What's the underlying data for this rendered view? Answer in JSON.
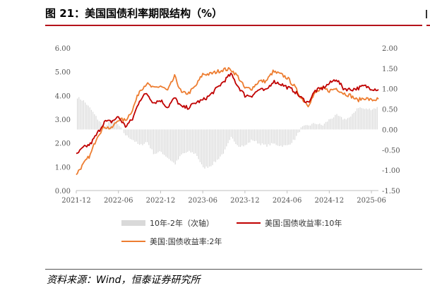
{
  "page": {
    "title": "图 21：美国国债利率期限结构（%）",
    "source": "资料来源：Wind，恒泰证券研究所"
  },
  "chart_data": {
    "type": "line",
    "title": "",
    "xlabel": "",
    "ylabel": "",
    "x_range": [
      "2021-12",
      "2025-07"
    ],
    "x_ticks": [
      "2021-12",
      "2022-06",
      "2022-12",
      "2023-06",
      "2023-12",
      "2024-06",
      "2024-12",
      "2025-06"
    ],
    "y_left": {
      "range": [
        0,
        6
      ],
      "ticks": [
        "0.00",
        "1.00",
        "2.00",
        "3.00",
        "4.00",
        "5.00",
        "6.00"
      ]
    },
    "y_right": {
      "range": [
        -1.5,
        2.0
      ],
      "ticks": [
        "-1.50",
        "-1.00",
        "-0.50",
        "0.00",
        "0.50",
        "1.00",
        "1.50",
        "2.00"
      ]
    },
    "grid": false,
    "legend_position": "bottom",
    "series": [
      {
        "name": "10年-2年（次轴）",
        "kind": "bar",
        "axis": "right",
        "color": "#d9d9d9",
        "x": [
          "2021-12",
          "2022-01",
          "2022-02",
          "2022-03",
          "2022-04",
          "2022-05",
          "2022-06",
          "2022-07",
          "2022-08",
          "2022-09",
          "2022-10",
          "2022-11",
          "2022-12",
          "2023-01",
          "2023-02",
          "2023-03",
          "2023-04",
          "2023-05",
          "2023-06",
          "2023-07",
          "2023-08",
          "2023-09",
          "2023-10",
          "2023-11",
          "2023-12",
          "2024-01",
          "2024-02",
          "2024-03",
          "2024-04",
          "2024-05",
          "2024-06",
          "2024-07",
          "2024-08",
          "2024-09",
          "2024-10",
          "2024-11",
          "2024-12",
          "2025-01",
          "2025-02",
          "2025-03",
          "2025-04",
          "2025-05",
          "2025-06",
          "2025-07"
        ],
        "values": [
          0.8,
          0.7,
          0.5,
          0.25,
          0.05,
          0.25,
          0.1,
          -0.15,
          -0.25,
          -0.4,
          -0.3,
          -0.6,
          -0.55,
          -0.7,
          -0.85,
          -0.6,
          -0.55,
          -0.6,
          -0.95,
          -0.9,
          -0.75,
          -0.55,
          -0.2,
          -0.4,
          -0.4,
          -0.25,
          -0.35,
          -0.4,
          -0.35,
          -0.4,
          -0.4,
          -0.25,
          0.05,
          0.1,
          0.15,
          0.1,
          0.25,
          0.35,
          0.25,
          0.3,
          0.55,
          0.5,
          0.5,
          0.55
        ]
      },
      {
        "name": "美国:国债收益率:10年",
        "kind": "line",
        "axis": "left",
        "color": "#c00000",
        "x": [
          "2021-12",
          "2022-01",
          "2022-02",
          "2022-03",
          "2022-04",
          "2022-05",
          "2022-06",
          "2022-07",
          "2022-08",
          "2022-09",
          "2022-10",
          "2022-11",
          "2022-12",
          "2023-01",
          "2023-02",
          "2023-03",
          "2023-04",
          "2023-05",
          "2023-06",
          "2023-07",
          "2023-08",
          "2023-09",
          "2023-10",
          "2023-11",
          "2023-12",
          "2024-01",
          "2024-02",
          "2024-03",
          "2024-04",
          "2024-05",
          "2024-06",
          "2024-07",
          "2024-08",
          "2024-09",
          "2024-10",
          "2024-11",
          "2024-12",
          "2025-01",
          "2025-02",
          "2025-03",
          "2025-04",
          "2025-05",
          "2025-06",
          "2025-07"
        ],
        "values": [
          1.5,
          1.8,
          1.95,
          2.4,
          2.9,
          2.9,
          3.1,
          2.7,
          3.0,
          3.8,
          4.1,
          3.7,
          3.8,
          3.5,
          3.9,
          3.5,
          3.5,
          3.7,
          3.8,
          4.0,
          4.3,
          4.6,
          4.9,
          4.4,
          4.0,
          4.0,
          4.25,
          4.2,
          4.6,
          4.5,
          4.35,
          4.2,
          3.9,
          3.7,
          4.2,
          4.3,
          4.5,
          4.7,
          4.3,
          4.25,
          4.3,
          4.4,
          4.3,
          4.25
        ]
      },
      {
        "name": "美国:国债收益率:2年",
        "kind": "line",
        "axis": "left",
        "color": "#ed7d31",
        "x": [
          "2021-12",
          "2022-01",
          "2022-02",
          "2022-03",
          "2022-04",
          "2022-05",
          "2022-06",
          "2022-07",
          "2022-08",
          "2022-09",
          "2022-10",
          "2022-11",
          "2022-12",
          "2023-01",
          "2023-02",
          "2023-03",
          "2023-04",
          "2023-05",
          "2023-06",
          "2023-07",
          "2023-08",
          "2023-09",
          "2023-10",
          "2023-11",
          "2023-12",
          "2024-01",
          "2024-02",
          "2024-03",
          "2024-04",
          "2024-05",
          "2024-06",
          "2024-07",
          "2024-08",
          "2024-09",
          "2024-10",
          "2024-11",
          "2024-12",
          "2025-01",
          "2025-02",
          "2025-03",
          "2025-04",
          "2025-05",
          "2025-06",
          "2025-07"
        ],
        "values": [
          0.7,
          1.1,
          1.5,
          2.3,
          2.7,
          2.6,
          3.0,
          2.95,
          3.4,
          4.2,
          4.5,
          4.3,
          4.4,
          4.2,
          4.8,
          4.1,
          4.1,
          4.4,
          4.9,
          4.9,
          5.0,
          5.1,
          5.1,
          4.8,
          4.3,
          4.3,
          4.6,
          4.6,
          5.0,
          4.9,
          4.75,
          4.4,
          3.9,
          3.6,
          4.1,
          4.3,
          4.2,
          4.3,
          4.1,
          4.0,
          3.8,
          3.9,
          3.8,
          3.85
        ]
      }
    ]
  }
}
